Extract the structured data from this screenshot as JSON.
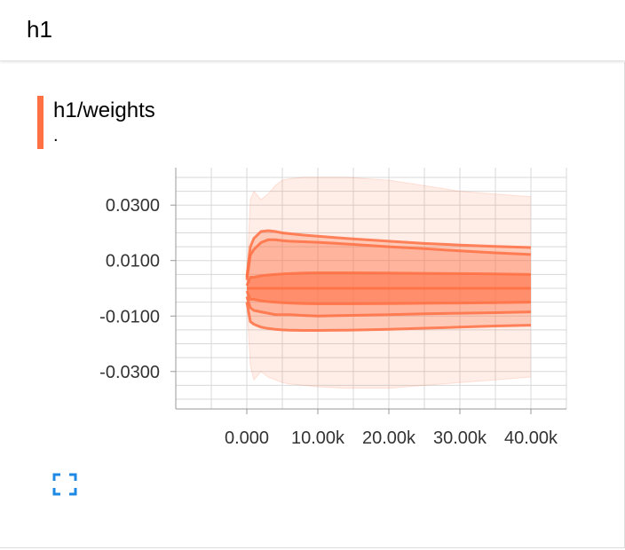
{
  "section": {
    "title": "h1"
  },
  "card": {
    "title": "h1/weights",
    "subtitle": "."
  },
  "colors": {
    "accent": "#ff7043",
    "expand_icon": "#1e88e5"
  },
  "icons": {
    "expand": "fullscreen-expand-icon"
  },
  "chart_data": {
    "type": "area",
    "title": "h1/weights",
    "xlabel": "",
    "ylabel": "",
    "xlim": [
      -10000,
      45000
    ],
    "ylim": [
      -0.0435,
      0.0435
    ],
    "x_ticks": [
      0,
      10000,
      20000,
      30000,
      40000
    ],
    "x_tick_labels": [
      "0.000",
      "10.00k",
      "20.00k",
      "30.00k",
      "40.00k"
    ],
    "y_ticks": [
      0.03,
      0.01,
      -0.01,
      -0.03
    ],
    "y_tick_labels": [
      "0.0300",
      "0.0100",
      "-0.0100",
      "-0.0300"
    ],
    "grid": true,
    "x": [
      0,
      500,
      1000,
      2000,
      3000,
      4000,
      5000,
      6000,
      8000,
      10000,
      14000,
      20000,
      25000,
      30000,
      35000,
      40000
    ],
    "series": [
      {
        "values": [
          -0.005,
          -0.028,
          -0.033,
          -0.03,
          -0.032,
          -0.033,
          -0.034,
          -0.0345,
          -0.035,
          -0.0355,
          -0.036,
          -0.036,
          -0.035,
          -0.034,
          -0.033,
          -0.032
        ]
      },
      {
        "values": [
          -0.005,
          -0.012,
          -0.013,
          -0.014,
          -0.0145,
          -0.0148,
          -0.015,
          -0.0151,
          -0.0152,
          -0.0152,
          -0.0151,
          -0.0148,
          -0.0144,
          -0.014,
          -0.0136,
          -0.0133
        ]
      },
      {
        "values": [
          -0.003,
          -0.007,
          -0.008,
          -0.0085,
          -0.009,
          -0.0095,
          -0.0095,
          -0.0095,
          -0.0098,
          -0.01,
          -0.0098,
          -0.0095,
          -0.0092,
          -0.009,
          -0.0088,
          -0.0085
        ]
      },
      {
        "values": [
          -0.001,
          -0.004,
          -0.004,
          -0.0045,
          -0.0048,
          -0.005,
          -0.0052,
          -0.0053,
          -0.0055,
          -0.0056,
          -0.0056,
          -0.0055,
          -0.0054,
          -0.0053,
          -0.0052,
          -0.005
        ]
      },
      {
        "values": [
          0.0,
          0.0,
          0.0,
          0.0,
          0.0,
          0.0,
          0.0,
          0.0,
          0.0,
          0.0,
          0.0,
          0.0,
          0.0,
          0.0,
          0.0,
          0.0
        ]
      },
      {
        "values": [
          0.001,
          0.004,
          0.004,
          0.0045,
          0.0048,
          0.005,
          0.0052,
          0.0053,
          0.0055,
          0.0056,
          0.0056,
          0.0055,
          0.0054,
          0.0053,
          0.0052,
          0.005
        ]
      },
      {
        "values": [
          0.003,
          0.012,
          0.014,
          0.0165,
          0.0175,
          0.0175,
          0.0172,
          0.017,
          0.0168,
          0.0166,
          0.016,
          0.015,
          0.0143,
          0.0135,
          0.0128,
          0.0122
        ]
      },
      {
        "values": [
          0.004,
          0.015,
          0.018,
          0.0205,
          0.0208,
          0.0205,
          0.02,
          0.0197,
          0.0192,
          0.0188,
          0.018,
          0.017,
          0.0162,
          0.0156,
          0.0151,
          0.0147
        ]
      },
      {
        "values": [
          0.005,
          0.032,
          0.035,
          0.032,
          0.034,
          0.037,
          0.039,
          0.0395,
          0.04,
          0.04,
          0.04,
          0.039,
          0.037,
          0.035,
          0.034,
          0.033
        ]
      }
    ]
  }
}
